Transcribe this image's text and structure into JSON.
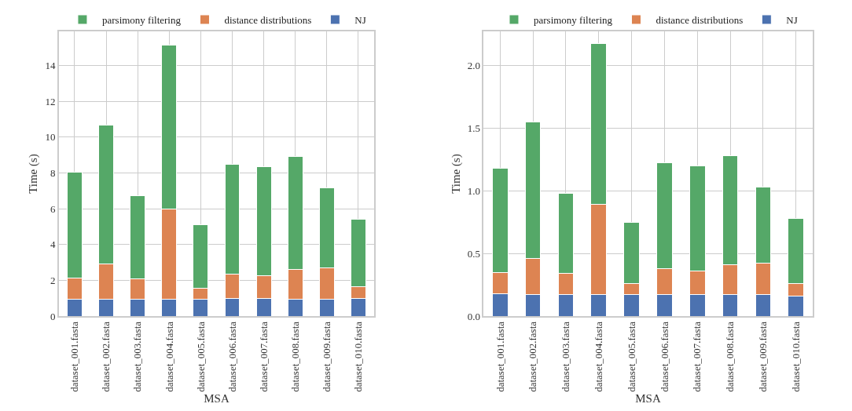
{
  "chart_data": [
    {
      "type": "bar",
      "stacked": true,
      "xlabel": "MSA",
      "ylabel": "Time (s)",
      "categories": [
        "dataset_001.fasta",
        "dataset_002.fasta",
        "dataset_003.fasta",
        "dataset_004.fasta",
        "dataset_005.fasta",
        "dataset_006.fasta",
        "dataset_007.fasta",
        "dataset_008.fasta",
        "dataset_009.fasta",
        "dataset_010.fasta"
      ],
      "series": [
        {
          "name": "NJ",
          "color": "#4c72b0",
          "values": [
            0.95,
            0.95,
            0.95,
            0.95,
            0.95,
            0.97,
            0.97,
            0.95,
            0.95,
            1.0
          ]
        },
        {
          "name": "distance distributions",
          "color": "#dd8452",
          "values": [
            1.16,
            1.95,
            1.11,
            5.01,
            0.6,
            1.38,
            1.28,
            1.67,
            1.76,
            0.66
          ]
        },
        {
          "name": "parsimony filtering",
          "color": "#55a868",
          "values": [
            5.94,
            7.75,
            4.65,
            9.18,
            3.57,
            6.13,
            6.11,
            6.31,
            4.44,
            3.73
          ]
        }
      ],
      "ylim": [
        0,
        15.9
      ],
      "yticks": [
        0,
        2,
        4,
        6,
        8,
        10,
        12,
        14
      ],
      "grid": true,
      "legend": "top"
    },
    {
      "type": "bar",
      "stacked": true,
      "xlabel": "MSA",
      "ylabel": "Time (s)",
      "categories": [
        "dataset_001.fasta",
        "dataset_002.fasta",
        "dataset_003.fasta",
        "dataset_004.fasta",
        "dataset_005.fasta",
        "dataset_006.fasta",
        "dataset_007.fasta",
        "dataset_008.fasta",
        "dataset_009.fasta",
        "dataset_010.fasta"
      ],
      "series": [
        {
          "name": "NJ",
          "color": "#4c72b0",
          "values": [
            0.18,
            0.17,
            0.17,
            0.17,
            0.17,
            0.17,
            0.17,
            0.17,
            0.17,
            0.16
          ]
        },
        {
          "name": "distance distributions",
          "color": "#dd8452",
          "values": [
            0.17,
            0.29,
            0.17,
            0.72,
            0.09,
            0.21,
            0.19,
            0.24,
            0.25,
            0.1
          ]
        },
        {
          "name": "parsimony filtering",
          "color": "#55a868",
          "values": [
            0.83,
            1.09,
            0.64,
            1.28,
            0.49,
            0.84,
            0.84,
            0.87,
            0.61,
            0.52
          ]
        }
      ],
      "ylim": [
        0,
        2.27
      ],
      "yticks": [
        {
          "value": 0,
          "label": "0.0"
        },
        {
          "value": 0.5,
          "label": "0.5"
        },
        {
          "value": 1.0,
          "label": "1.0"
        },
        {
          "value": 1.5,
          "label": "1.5"
        },
        {
          "value": 2.0,
          "label": "2.0"
        }
      ],
      "grid": true,
      "legend": "top"
    }
  ]
}
